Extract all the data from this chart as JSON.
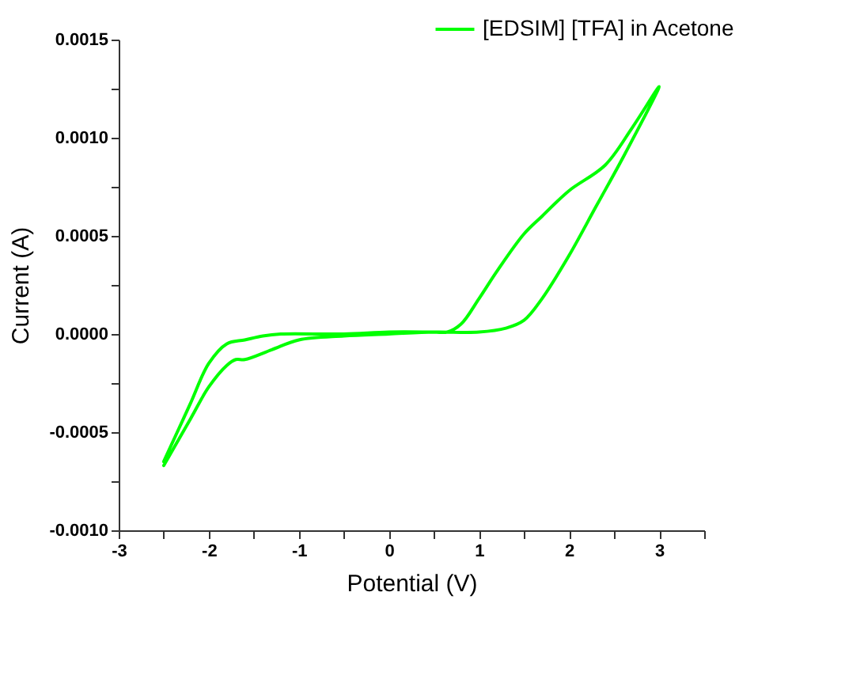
{
  "chart_data": {
    "type": "line",
    "xlabel": "Potential (V)",
    "ylabel": "Current (A)",
    "xlim": [
      -3,
      3.5
    ],
    "ylim": [
      -0.001,
      0.0015
    ],
    "xticks": [
      -3,
      {
        "value": -2.5,
        "label": null
      },
      -2,
      {
        "value": -1.5,
        "label": null
      },
      -1,
      {
        "value": -0.5,
        "label": null
      },
      0,
      {
        "value": 0.5,
        "label": null
      },
      1,
      {
        "value": 1.5,
        "label": null
      },
      2,
      {
        "value": 2.5,
        "label": null
      },
      3,
      {
        "value": 3.5,
        "label": null
      }
    ],
    "yticks": [
      {
        "value": -0.001,
        "label": "-0.0010"
      },
      {
        "value": -0.00075,
        "label": null
      },
      {
        "value": -0.0005,
        "label": "-0.0005"
      },
      {
        "value": -0.00025,
        "label": null
      },
      {
        "value": 0,
        "label": "0.0000"
      },
      {
        "value": 0.00025,
        "label": null
      },
      {
        "value": 0.0005,
        "label": "0.0005"
      },
      {
        "value": 0.00075,
        "label": null
      },
      {
        "value": 0.001,
        "label": "0.0010"
      },
      {
        "value": 0.00125,
        "label": null
      },
      {
        "value": 0.0015,
        "label": "0.0015"
      }
    ],
    "grid": false,
    "legend": "top right",
    "marker": "none",
    "line_style": "solid",
    "series": [
      {
        "name": "[EDSIM] [TFA] in Acetone",
        "color": "#00ff00",
        "x": [
          -2.5,
          -2.35,
          -2.2,
          -2.0,
          -1.8,
          -1.6,
          -1.4,
          -1.2,
          -0.5,
          0,
          0.5,
          0.65,
          0.8,
          1.0,
          1.2,
          1.5,
          1.7,
          2.0,
          2.4,
          2.7,
          3.0,
          2.6,
          2.3,
          2.0,
          1.7,
          1.5,
          1.3,
          1.0,
          0.5,
          0,
          -0.5,
          -1.0,
          -1.3,
          -1.6,
          -1.7,
          -1.8,
          -2.0,
          -2.2,
          -2.5
        ],
        "values": [
          -0.00065,
          -0.0005,
          -0.00035,
          -0.00015,
          -5e-05,
          -3e-05,
          -1e-05,
          0.0,
          0.0,
          1e-05,
          1e-05,
          1e-05,
          5e-05,
          0.00018,
          0.00032,
          0.00051,
          0.0006,
          0.00073,
          0.00086,
          0.00105,
          0.00126,
          0.0009,
          0.00065,
          0.0004,
          0.00018,
          7e-05,
          3e-05,
          1e-05,
          1e-05,
          0.0,
          -1e-05,
          -3e-05,
          -8e-05,
          -0.00013,
          -0.00013,
          -0.00016,
          -0.00027,
          -0.00043,
          -0.00067
        ]
      }
    ]
  }
}
